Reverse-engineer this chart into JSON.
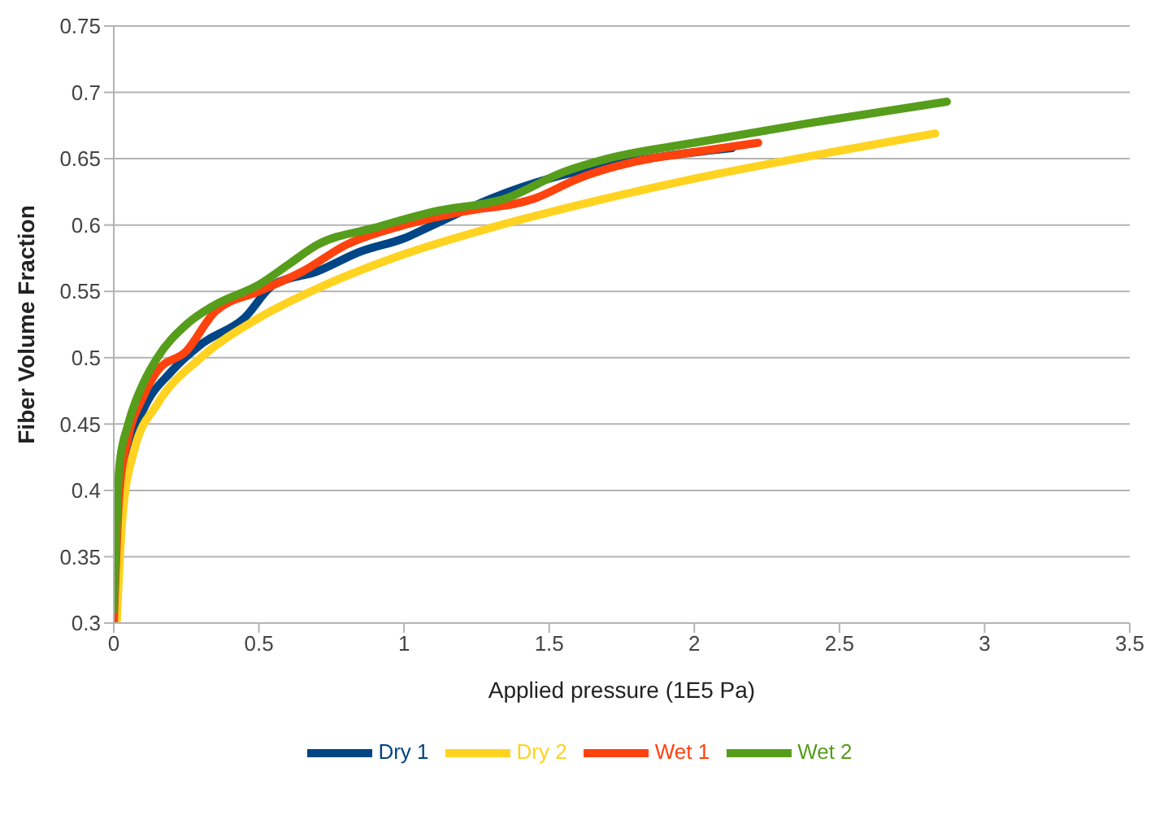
{
  "chart_data": {
    "type": "line",
    "xlabel": "Applied pressure (1E5 Pa)",
    "ylabel": "Fiber Volume Fraction",
    "xlim": [
      0,
      3.5
    ],
    "xticks": [
      0,
      0.5,
      1,
      1.5,
      2,
      2.5,
      3,
      3.5
    ],
    "ylim": [
      0.3,
      0.75
    ],
    "yticks": [
      0.3,
      0.35,
      0.4,
      0.45,
      0.5,
      0.55,
      0.6,
      0.65,
      0.7,
      0.75
    ],
    "grid": "y",
    "legend": "bottom",
    "marker": "none",
    "line_style": "solid",
    "series": [
      {
        "name": "Dry 1",
        "color": "#004586",
        "x": [
          0.01,
          0.02,
          0.05,
          0.1,
          0.2,
          0.3,
          0.45,
          0.55,
          0.7,
          0.85,
          1.0,
          1.1,
          1.3,
          1.5,
          1.7,
          1.9,
          2.13
        ],
        "values": [
          0.32,
          0.38,
          0.43,
          0.46,
          0.49,
          0.51,
          0.53,
          0.555,
          0.565,
          0.58,
          0.59,
          0.6,
          0.62,
          0.635,
          0.645,
          0.652,
          0.658
        ]
      },
      {
        "name": "Dry 2",
        "color": "#ffd320",
        "x": [
          0.01,
          0.03,
          0.07,
          0.15,
          0.3,
          0.5,
          0.7,
          1.0,
          1.3,
          1.6,
          2.0,
          2.4,
          2.83
        ],
        "values": [
          0.3,
          0.38,
          0.43,
          0.465,
          0.5,
          0.53,
          0.552,
          0.578,
          0.598,
          0.615,
          0.635,
          0.652,
          0.669
        ]
      },
      {
        "name": "Wet 1",
        "color": "#ff420e",
        "x": [
          0.0,
          0.02,
          0.05,
          0.1,
          0.15,
          0.25,
          0.35,
          0.5,
          0.65,
          0.8,
          1.0,
          1.2,
          1.45,
          1.6,
          1.8,
          2.0,
          2.22
        ],
        "values": [
          0.3,
          0.4,
          0.44,
          0.47,
          0.49,
          0.505,
          0.535,
          0.55,
          0.565,
          0.585,
          0.6,
          0.61,
          0.62,
          0.635,
          0.648,
          0.655,
          0.662
        ]
      },
      {
        "name": "Wet 2",
        "color": "#579d1c",
        "x": [
          0.0,
          0.02,
          0.05,
          0.1,
          0.15,
          0.25,
          0.35,
          0.5,
          0.6,
          0.7,
          0.9,
          1.1,
          1.35,
          1.55,
          1.7,
          2.0,
          2.4,
          2.87
        ],
        "values": [
          0.31,
          0.42,
          0.45,
          0.48,
          0.5,
          0.525,
          0.54,
          0.555,
          0.57,
          0.585,
          0.598,
          0.61,
          0.62,
          0.64,
          0.65,
          0.662,
          0.677,
          0.693
        ]
      }
    ]
  }
}
